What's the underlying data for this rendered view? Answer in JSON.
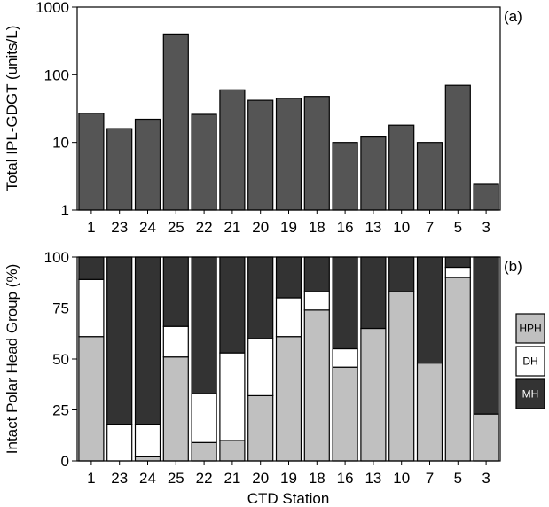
{
  "chart_data": [
    {
      "panel": "(a)",
      "type": "bar",
      "scale": "log",
      "ylabel": "Total IPL-GDGT (units/L)",
      "xlabel": "",
      "ylim": [
        1,
        1000
      ],
      "yticks": [
        "1",
        "10",
        "100",
        "1000"
      ],
      "categories": [
        "1",
        "23",
        "24",
        "25",
        "22",
        "21",
        "20",
        "19",
        "18",
        "16",
        "13",
        "10",
        "7",
        "5",
        "3"
      ],
      "values": [
        27,
        16,
        22,
        400,
        26,
        60,
        42,
        45,
        48,
        10,
        12,
        18,
        10,
        70,
        2.4
      ],
      "bar_color": "#555555"
    },
    {
      "panel": "(b)",
      "type": "bar",
      "stacked": true,
      "ylabel": "Intact Polar Head Group (%)",
      "xlabel": "CTD Station",
      "ylim": [
        0,
        100
      ],
      "yticks": [
        "0",
        "25",
        "50",
        "75",
        "100"
      ],
      "categories": [
        "1",
        "23",
        "24",
        "25",
        "22",
        "21",
        "20",
        "19",
        "18",
        "16",
        "13",
        "10",
        "7",
        "5",
        "3"
      ],
      "legend_position": "right",
      "series": [
        {
          "name": "HPH",
          "color": "#c0c0c0",
          "values": [
            61,
            0,
            2,
            51,
            9,
            10,
            32,
            61,
            74,
            46,
            65,
            83,
            48,
            90,
            23
          ]
        },
        {
          "name": "DH",
          "color": "#ffffff",
          "values": [
            28,
            18,
            16,
            15,
            24,
            43,
            28,
            19,
            9,
            9,
            0,
            0,
            0,
            5,
            0
          ]
        },
        {
          "name": "MH",
          "color": "#333333",
          "values": [
            11,
            82,
            82,
            34,
            67,
            47,
            40,
            20,
            17,
            45,
            35,
            17,
            52,
            5,
            77
          ]
        }
      ]
    }
  ]
}
